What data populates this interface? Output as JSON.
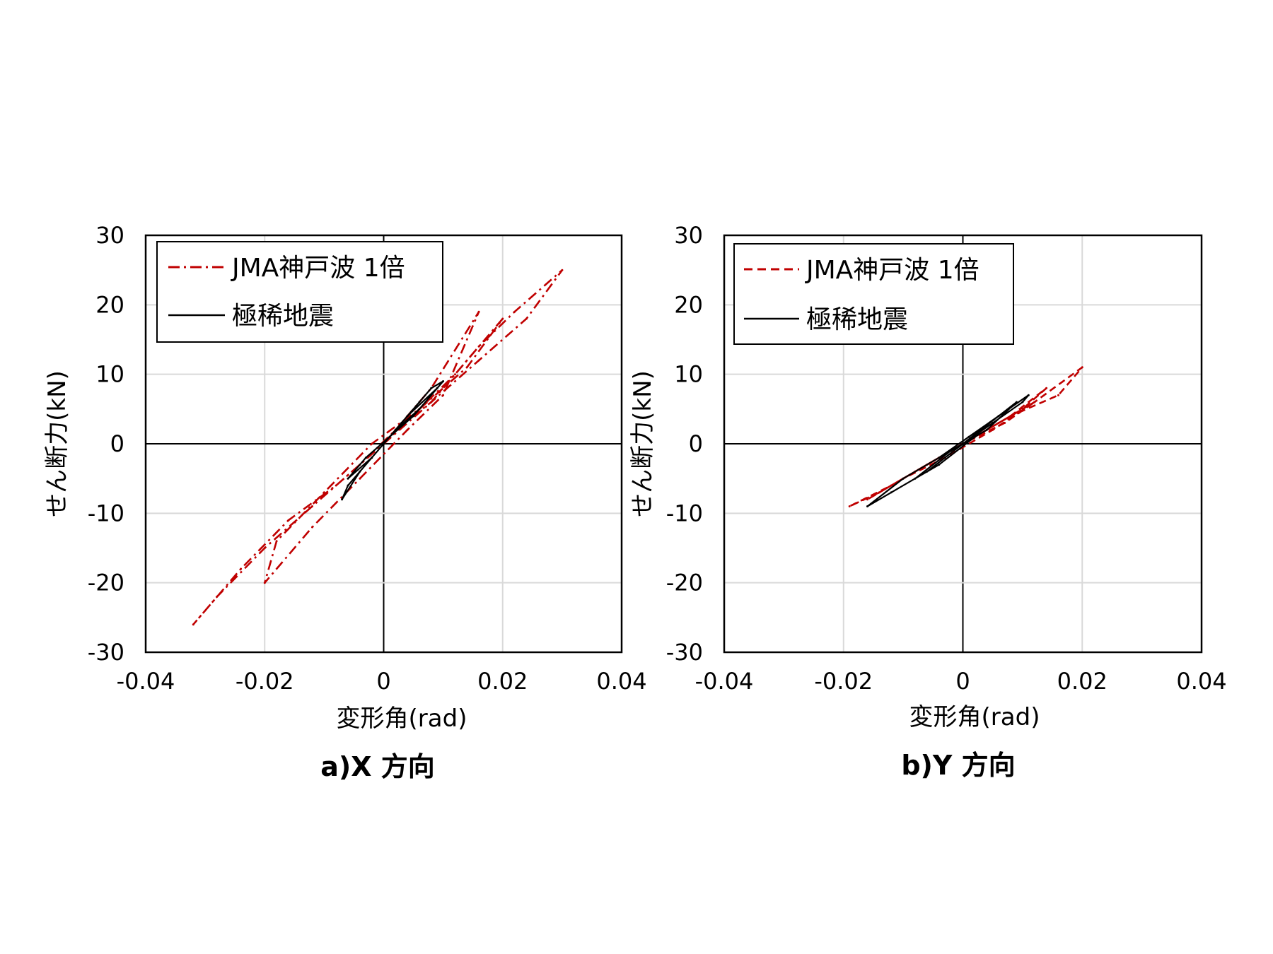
{
  "chart_data": [
    {
      "type": "line",
      "caption": "a)X 方向",
      "xlabel": "変形角(rad)",
      "ylabel": "せん断力(kN)",
      "xlim": [
        -0.04,
        0.04
      ],
      "ylim": [
        -30,
        30
      ],
      "x_ticks": [
        "-0.04",
        "-0.02",
        "0",
        "0.02",
        "0.04"
      ],
      "y_ticks": [
        "30",
        "20",
        "10",
        "0",
        "-10",
        "-20",
        "-30"
      ],
      "grid": true,
      "legend_position": "top-left",
      "series": [
        {
          "name": "JMA神戸波 1倍",
          "color": "#c00000",
          "style": "dash-dot",
          "x": [
            0,
            0.008,
            0.016,
            0.022,
            0.03,
            0.024,
            0.016,
            0.008,
            0.002,
            -0.004,
            -0.012,
            -0.02,
            -0.028,
            -0.032,
            -0.024,
            -0.016,
            -0.008,
            0,
            0.006,
            0.012,
            0.02,
            0.014,
            0.006,
            -0.002,
            -0.01,
            -0.018,
            -0.02,
            -0.012,
            -0.004,
            0.004,
            0.01,
            0.016,
            0.008,
            0
          ],
          "y": [
            0,
            6,
            14,
            19,
            25,
            18,
            12,
            6,
            2,
            -3,
            -9,
            -15,
            -22,
            -26,
            -18,
            -11,
            -6,
            0,
            5,
            10,
            18,
            11,
            5,
            0,
            -7,
            -14,
            -20,
            -12,
            -5,
            2,
            7,
            19,
            8,
            0
          ]
        },
        {
          "name": "極稀地震",
          "color": "#000000",
          "style": "solid",
          "x": [
            0,
            0.004,
            0.008,
            0.01,
            0.006,
            0.002,
            -0.002,
            -0.006,
            -0.007,
            -0.004,
            0,
            0.004,
            0.009,
            0.005,
            0.001,
            -0.003,
            -0.006,
            -0.002,
            0.002,
            0.006,
            0.003,
            0
          ],
          "y": [
            0,
            4,
            8,
            9,
            5,
            2,
            -2,
            -6,
            -8,
            -4,
            0,
            4,
            8,
            4,
            1,
            -2,
            -5,
            -2,
            2,
            6,
            3,
            0
          ]
        }
      ]
    },
    {
      "type": "line",
      "caption": "b)Y 方向",
      "xlabel": "変形角(rad)",
      "ylabel": "せん断力(kN)",
      "xlim": [
        -0.04,
        0.04
      ],
      "ylim": [
        -30,
        30
      ],
      "x_ticks": [
        "-0.04",
        "-0.02",
        "0",
        "0.02",
        "0.04"
      ],
      "y_ticks": [
        "30",
        "20",
        "10",
        "0",
        "-10",
        "-20",
        "-30"
      ],
      "grid": true,
      "legend_position": "top-left",
      "series": [
        {
          "name": "JMA神戸波 1倍",
          "color": "#c00000",
          "style": "dashed",
          "x": [
            0,
            0.006,
            0.012,
            0.02,
            0.016,
            0.008,
            0.002,
            -0.004,
            -0.012,
            -0.019,
            -0.014,
            -0.006,
            0,
            0.008,
            0.014,
            0.01,
            0.004,
            -0.002,
            -0.008,
            -0.016,
            -0.01,
            -0.003,
            0.005,
            0.012,
            0.007,
            0
          ],
          "y": [
            0,
            3,
            6,
            11,
            7,
            4,
            1,
            -2,
            -6,
            -9,
            -7,
            -3,
            0,
            4,
            8,
            5,
            2,
            -1,
            -4,
            -8,
            -5,
            -2,
            2,
            6,
            3,
            0
          ]
        },
        {
          "name": "極稀地震",
          "color": "#000000",
          "style": "solid",
          "x": [
            0,
            0.005,
            0.01,
            0.011,
            0.006,
            0.001,
            -0.004,
            -0.01,
            -0.016,
            -0.012,
            -0.006,
            0,
            0.006,
            0.009,
            0.004,
            -0.002,
            -0.008,
            -0.004,
            0.002,
            0
          ],
          "y": [
            0,
            3,
            6,
            7,
            4,
            1,
            -2,
            -5,
            -9,
            -7,
            -4,
            0,
            4,
            6,
            2,
            -1,
            -5,
            -3,
            1,
            0
          ]
        }
      ]
    }
  ]
}
